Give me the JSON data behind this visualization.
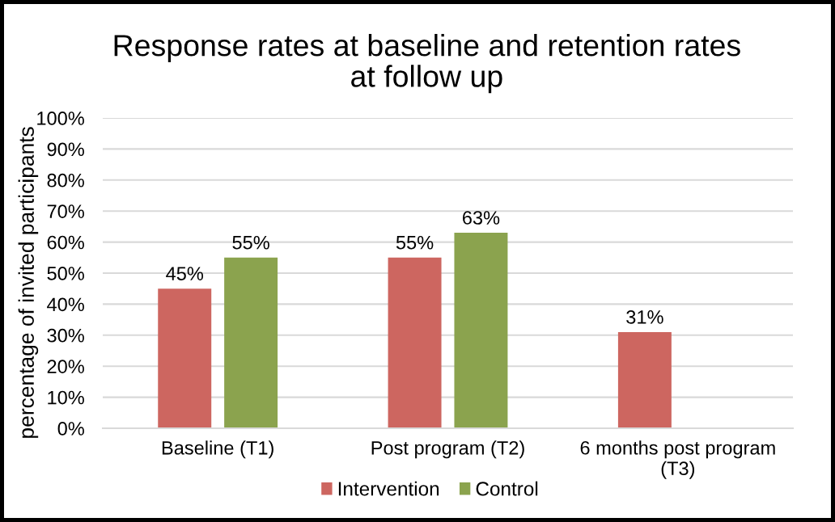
{
  "chart_data": {
    "type": "bar",
    "title": "Response rates at baseline and retention rates at follow up",
    "ylabel": "percentage of invited participants",
    "categories": [
      "Baseline (T1)",
      "Post program (T2)",
      "6 months post program (T3)"
    ],
    "series": [
      {
        "name": "Intervention",
        "color": "#cd6660",
        "values": [
          45,
          55,
          31
        ],
        "value_labels": [
          "45%",
          "55%",
          "31%"
        ]
      },
      {
        "name": "Control",
        "color": "#8ba34e",
        "values": [
          55,
          63,
          null
        ],
        "value_labels": [
          "55%",
          "63%",
          null
        ]
      }
    ],
    "ylim": [
      0,
      100
    ],
    "yticks": [
      {
        "value": 0,
        "label": "0%"
      },
      {
        "value": 10,
        "label": "10%"
      },
      {
        "value": 20,
        "label": "20%"
      },
      {
        "value": 30,
        "label": "30%"
      },
      {
        "value": 40,
        "label": "40%"
      },
      {
        "value": 50,
        "label": "50%"
      },
      {
        "value": 60,
        "label": "60%"
      },
      {
        "value": 70,
        "label": "70%"
      },
      {
        "value": 80,
        "label": "80%"
      },
      {
        "value": 90,
        "label": "90%"
      },
      {
        "value": 100,
        "label": "100%"
      }
    ],
    "grid": "y",
    "legend": "bottom"
  }
}
